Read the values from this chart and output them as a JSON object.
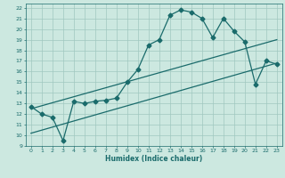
{
  "title": "",
  "xlabel": "Humidex (Indice chaleur)",
  "ylabel": "",
  "xlim": [
    -0.5,
    23.5
  ],
  "ylim": [
    9,
    22.4
  ],
  "xticks": [
    0,
    1,
    2,
    3,
    4,
    5,
    6,
    7,
    8,
    9,
    10,
    11,
    12,
    13,
    14,
    15,
    16,
    17,
    18,
    19,
    20,
    21,
    22,
    23
  ],
  "yticks": [
    9,
    10,
    11,
    12,
    13,
    14,
    15,
    16,
    17,
    18,
    19,
    20,
    21,
    22
  ],
  "bg_color": "#cce8e0",
  "line_color": "#1a6b6b",
  "grid_color": "#a0c8c0",
  "curve1_x": [
    0,
    1,
    2,
    3,
    4,
    5,
    6,
    7,
    8,
    9,
    10,
    11,
    12,
    13,
    14,
    15,
    16,
    17,
    18,
    19,
    20,
    21,
    22,
    23
  ],
  "curve1_y": [
    12.7,
    12.0,
    11.7,
    9.5,
    13.2,
    13.0,
    13.2,
    13.3,
    13.5,
    15.0,
    16.2,
    18.5,
    19.0,
    21.3,
    21.8,
    21.6,
    21.0,
    19.2,
    21.0,
    19.8,
    18.8,
    14.8,
    17.0,
    16.7
  ],
  "trend1_x": [
    0,
    23
  ],
  "trend1_y": [
    12.5,
    19.0
  ],
  "trend2_x": [
    0,
    23
  ],
  "trend2_y": [
    10.2,
    16.8
  ],
  "marker": "D",
  "markersize": 2.5,
  "linewidth": 0.9
}
